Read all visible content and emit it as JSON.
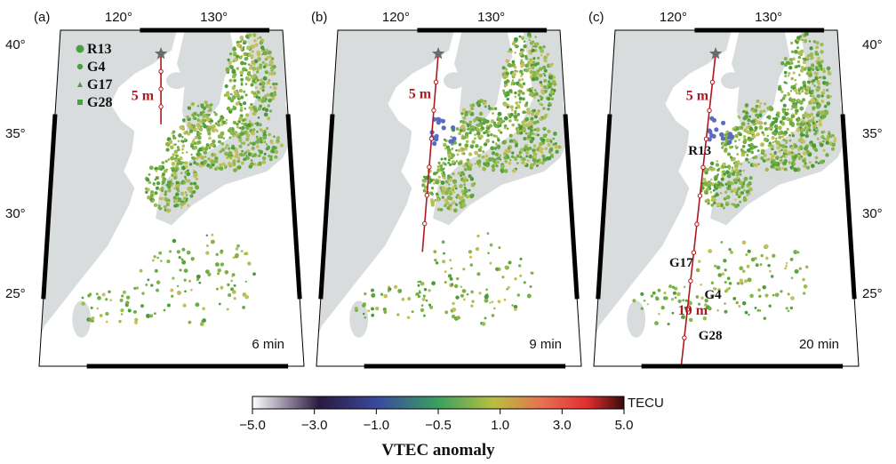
{
  "panels": [
    {
      "label": "(a)",
      "time": "6 min",
      "lon_ticks": [
        "120°",
        "130°"
      ],
      "lat_ticks_left": [
        "40°",
        "35°",
        "30°",
        "25°"
      ],
      "track_label": "5 m",
      "legend": [
        {
          "symbol": "circle-large",
          "text": "R13"
        },
        {
          "symbol": "circle",
          "text": "G4"
        },
        {
          "symbol": "triangle",
          "text": "G17"
        },
        {
          "symbol": "square",
          "text": "G28"
        }
      ]
    },
    {
      "label": "(b)",
      "time": "9 min",
      "lon_ticks": [
        "120°",
        "130°"
      ],
      "track_label": "5 m"
    },
    {
      "label": "(c)",
      "time": "20 min",
      "lon_ticks": [
        "120°",
        "130°"
      ],
      "lat_ticks_right": [
        "40°",
        "35°",
        "30°",
        "25°"
      ],
      "track_label": "5 m",
      "track_label_2": "10 m",
      "satellite_labels": [
        "R13",
        "G17",
        "G4",
        "G28"
      ]
    }
  ],
  "colorbar": {
    "unit": "TECU",
    "ticks": [
      "−5.0",
      "−3.0",
      "−1.0",
      "−0.5",
      "1.0",
      "3.0",
      "5.0"
    ],
    "title": "VTEC anomaly",
    "colors": [
      "#ffffff",
      "#2a1840",
      "#3a4aa0",
      "#3aa060",
      "#b8c040",
      "#e87050",
      "#e03030",
      "#3a0a0a"
    ]
  },
  "colors": {
    "land": "#d9dcdd",
    "sea": "#ffffff",
    "track": "#b0161e",
    "star": "#6a6a6a",
    "frame": "#000000"
  }
}
